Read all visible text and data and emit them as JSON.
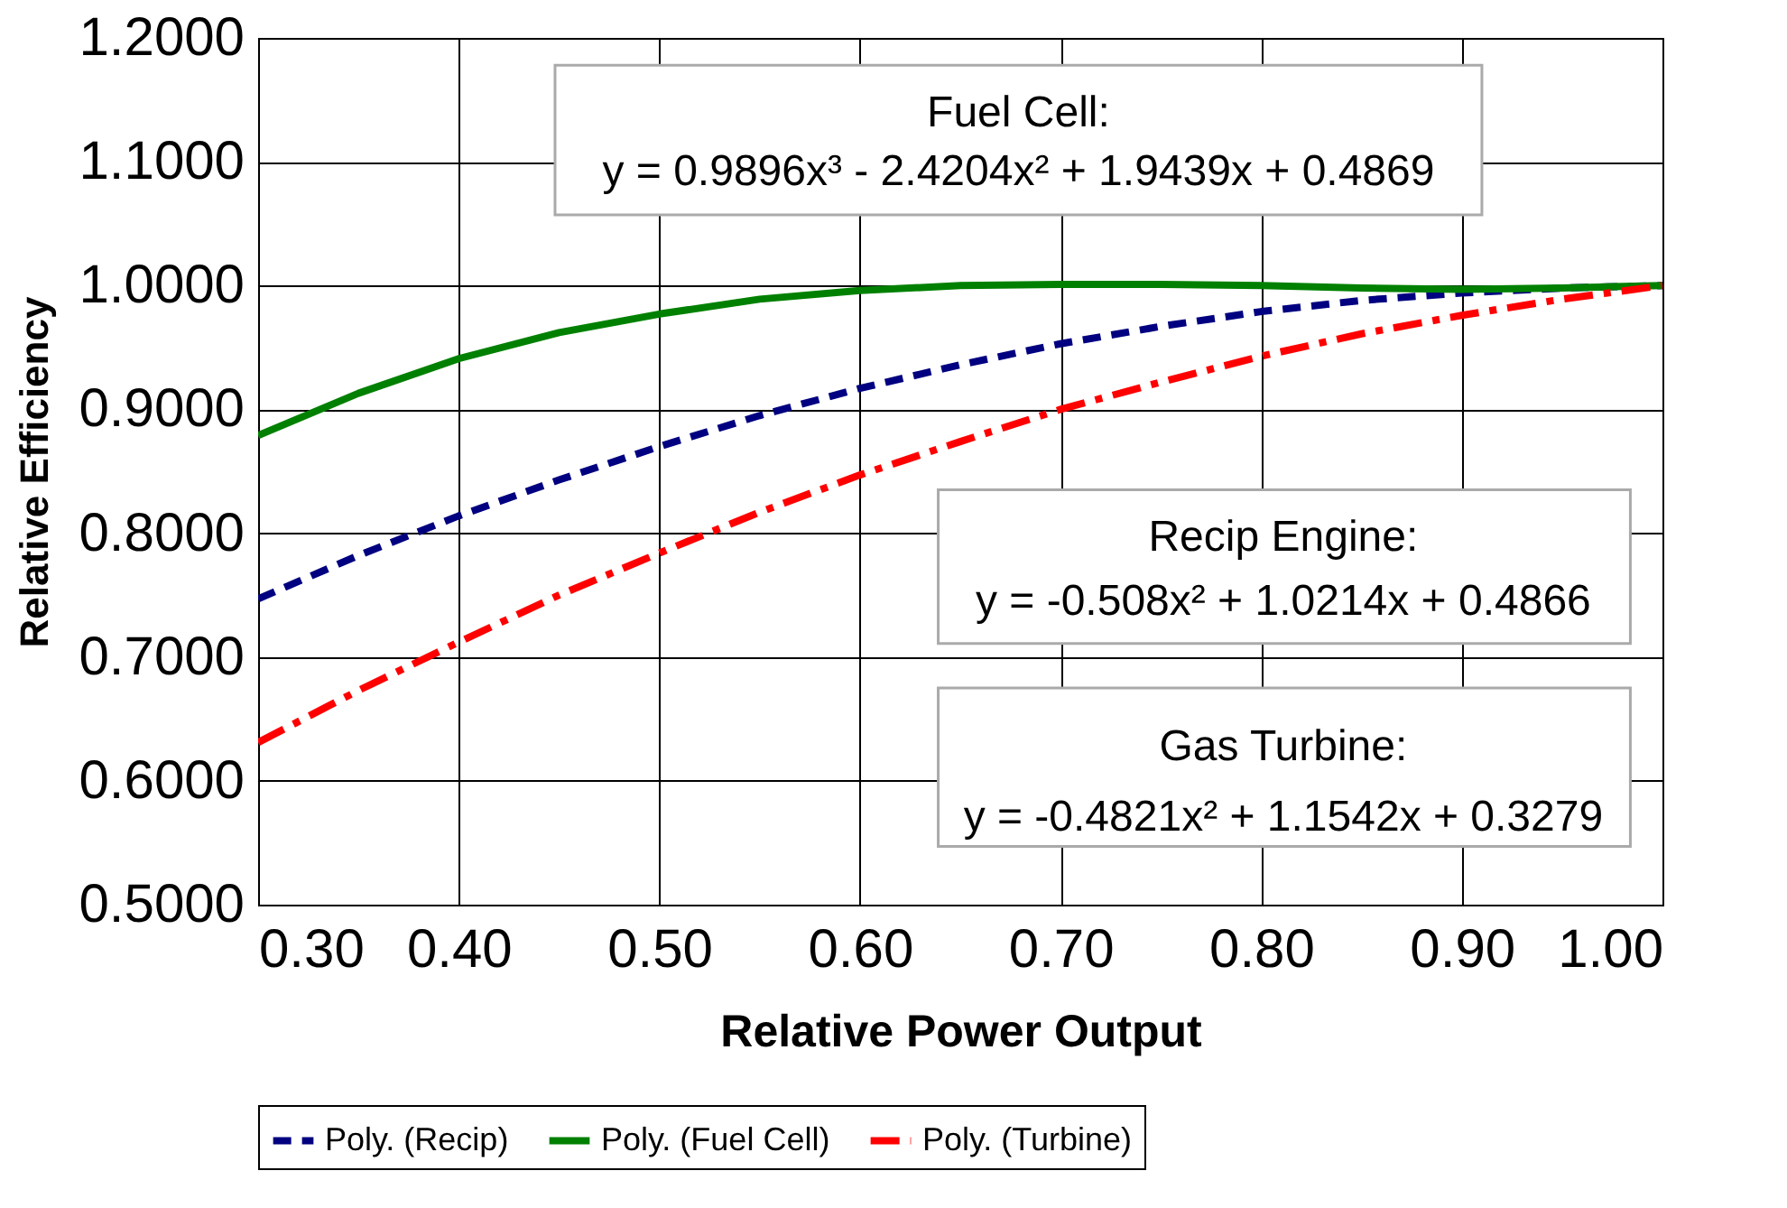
{
  "chart_data": {
    "type": "line",
    "xlabel": "Relative Power Output",
    "ylabel": "Relative Efficiency",
    "x": [
      0.3,
      0.35,
      0.4,
      0.45,
      0.5,
      0.55,
      0.6,
      0.65,
      0.7,
      0.75,
      0.8,
      0.85,
      0.9,
      0.95,
      1.0
    ],
    "series": [
      {
        "name": "Poly. (Recip)",
        "color": "#000080",
        "line_style": "dashed",
        "values": [
          0.747,
          0.782,
          0.814,
          0.843,
          0.87,
          0.895,
          0.917,
          0.936,
          0.953,
          0.967,
          0.979,
          0.988,
          0.994,
          0.998,
          1.0
        ]
      },
      {
        "name": "Poly. (Fuel Cell)",
        "color": "#008000",
        "line_style": "solid",
        "values": [
          0.879,
          0.913,
          0.941,
          0.962,
          0.977,
          0.989,
          0.996,
          1.0,
          1.001,
          1.001,
          1.0,
          0.998,
          0.997,
          0.998,
          1.0
        ]
      },
      {
        "name": "Poly. (Turbine)",
        "color": "#ff0000",
        "line_style": "dashdot",
        "values": [
          0.631,
          0.673,
          0.712,
          0.75,
          0.784,
          0.817,
          0.847,
          0.874,
          0.9,
          0.922,
          0.943,
          0.961,
          0.976,
          0.989,
          1.0
        ]
      }
    ],
    "xlim": [
      0.3,
      1.0
    ],
    "xticks": [
      {
        "value": 0.3,
        "label": "0.30"
      },
      {
        "value": 0.4,
        "label": "0.40"
      },
      {
        "value": 0.5,
        "label": "0.50"
      },
      {
        "value": 0.6,
        "label": "0.60"
      },
      {
        "value": 0.7,
        "label": "0.70"
      },
      {
        "value": 0.8,
        "label": "0.80"
      },
      {
        "value": 0.9,
        "label": "0.90"
      },
      {
        "value": 1.0,
        "label": "1.00"
      }
    ],
    "ylim": [
      0.5,
      1.2
    ],
    "yticks": [
      {
        "value": 0.5,
        "label": "0.5000"
      },
      {
        "value": 0.6,
        "label": "0.6000"
      },
      {
        "value": 0.7,
        "label": "0.7000"
      },
      {
        "value": 0.8,
        "label": "0.8000"
      },
      {
        "value": 0.9,
        "label": "0.9000"
      },
      {
        "value": 1.0,
        "label": "1.0000"
      },
      {
        "value": 1.1,
        "label": "1.1000"
      },
      {
        "value": 1.2,
        "label": "1.2000"
      }
    ],
    "grid": true,
    "legend": "bottom",
    "marker": "none",
    "annotations": [
      "Fuel Cell:",
      "y = 0.9896x³ - 2.4204x² + 1.9439x + 0.4869",
      "Recip Engine:",
      "y = -0.508x² + 1.0214x + 0.4866",
      "Gas Turbine:",
      "y = -0.4821x² + 1.1542x + 0.3279"
    ]
  }
}
